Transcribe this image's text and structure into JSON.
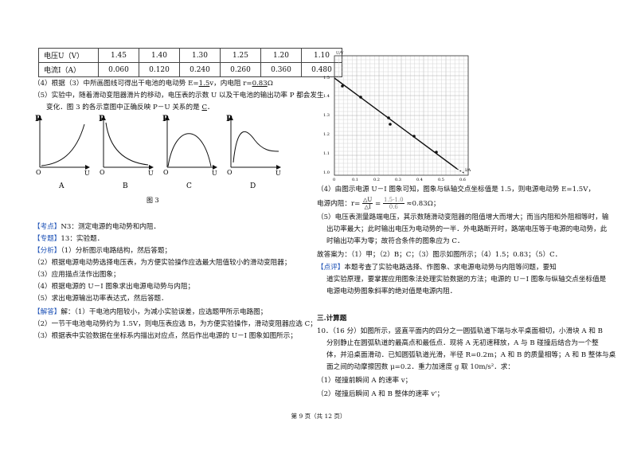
{
  "table": {
    "row1_label": "电压U（V）",
    "row1": [
      "1.45",
      "1.40",
      "1.30",
      "1.25",
      "1.20",
      "1.10"
    ],
    "row2_label": "电流I（A）",
    "row2": [
      "0.060",
      "0.120",
      "0.240",
      "0.260",
      "0.360",
      "0.480"
    ]
  },
  "left": {
    "q4_a": "（4）根据（3）中所画图线可得出干电池的电动势 E=",
    "q4_e": "1.5",
    "q4_b": "v，内电阻 r=",
    "q4_r": "0.83",
    "q4_c": "Ω",
    "q5_1": "（5）实验中，随着滑动变阻器滑片的移动，电压表的示数 U 以及干电池的输出功率 P 都会发生",
    "q5_2a": "变化．图 3 的各示意图中正确反映 P－U 关系的是",
    "q5_ans": "C",
    "q5_2b": "．",
    "graph_labels": [
      "A",
      "B",
      "C",
      "D"
    ],
    "axis_p": "P",
    "axis_u": "U",
    "axis_o": "O",
    "fig_caption": "图 3",
    "kaodian_tag": "【考点】",
    "kaodian": "N3：测定电源的电动势和内阻．",
    "zhuanti_tag": "【专题】",
    "zhuanti": "13：实验题．",
    "fenxi_tag": "【分析】",
    "fenxi": "（1）分析图示电路结构，然后答题；",
    "f2": "（2）根据电源电动势选择电压表，为方便实验操作应选最大阻值较小的滑动变阻器；",
    "f3": "（3）应用描点法作出图象；",
    "f4": "（4）根据电源的 U－I 图象求出电源电动势与内阻；",
    "f5": "（5）求出电源输出功率表达式，然后答题．",
    "jieda_tag": "【解答】",
    "jieda": "解：（1）干电池内阻较小，为减小实验误差，应选题甲所示电路图；",
    "j2": "（2）一节干电池电动势约为 1.5V，则电压表应选 B，为方便实验操作，滑动变阻器应选 C；",
    "j3": "（3）根据表中实验数据在坐标系内描出对应点，然后作出电源的 U－I 图象如图所示；"
  },
  "graph": {
    "y_unit": "U/V",
    "x_unit": "I/A",
    "y_ticks": [
      "1.5",
      "1.4",
      "1.3",
      "1.2",
      "1.1",
      "1.0"
    ],
    "x_ticks": [
      "0",
      "0.1",
      "0.2",
      "0.3",
      "0.4",
      "0.5",
      "0.6"
    ]
  },
  "right": {
    "r4": "（4）由图示电源 U－I 图象可知，图象与纵轴交点坐标值是 1.5，则电源电动势 E=1.5V，",
    "r4b_a": "电源内阻：r=",
    "r4b_num": "△U",
    "r4b_den": "△I",
    "r4b_mid": "=",
    "r4b_num2": "1.5-1.0",
    "r4b_den2": "0.6",
    "r4b_c": "≈0.83Ω；",
    "r5": "（5）电压表测量路端电压，其示数随滑动变阻器的阻值增大而增大；而当内阻和外阻相等时，输",
    "r5b": "出功率最大；此时输出电压为电动势的一半．外电路断开时，路端电压等于电源的电动势，此",
    "r5c": "时输出功率为零；故符合条件的图象应为 C．",
    "ans": "故答案为：（1）甲；（2）B；C；（3）图示如图所示；（4）1.5；0.83；（5）C．",
    "dianping_tag": "【点评】",
    "dianping": "本题考查了实验电路选择、作图象、求电源电动势与内阻等问题，要知",
    "dp2": "道实验原理，要掌握应用图象法处理实验数据的方法；电源的 U－I 图象与纵轴交点坐标值是",
    "dp3": "电源电动势图象斜率的绝对值是电源内阻．",
    "section": "三.计算题",
    "q10_1": "10．（16 分）如图所示，竖直平面内的四分之一圆弧轨道下端与水平桌面相切，小滑块 A 和 B",
    "q10_2": "分别静止在圆弧轨道的最高点和最低点．现将 A 无初速释放，A 与 B 碰撞后结合为一个整",
    "q10_3": "体，并沿桌面滑动．已知圆弧轨道光滑，半径 R=0.2m；A 和 B 的质量相等；A 和 B 整体与桌",
    "q10_4": "面之间的动摩擦因数 μ=0.2．重力加速度 g 取 10m/s²．求：",
    "q10_5": "（1）碰撞前瞬间 A 的速率 v；",
    "q10_6": "（2）碰撞后瞬间 A 和 B 整体的速率 v'；"
  },
  "footer": "第 9 页（共 12 页）"
}
